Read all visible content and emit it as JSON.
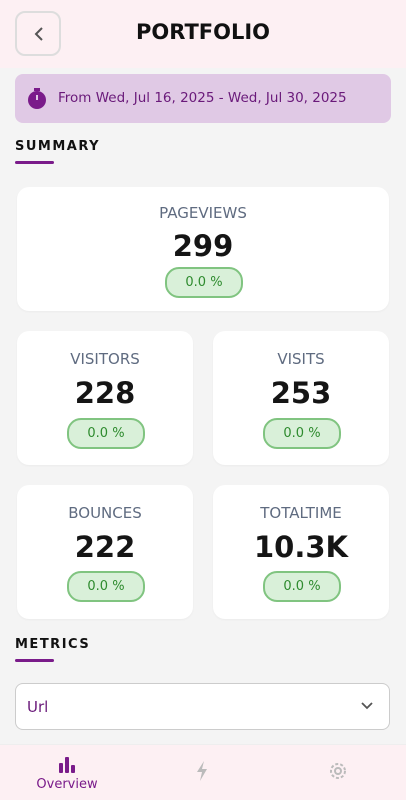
{
  "header": {
    "title": "PORTFOLIO"
  },
  "date_range": "From Wed, Jul 16, 2025 - Wed, Jul 30, 2025",
  "summary": {
    "title": "SUMMARY",
    "cards": [
      {
        "label": "PAGEVIEWS",
        "value": 299,
        "change": "0.0 %"
      },
      {
        "label": "VISITORS",
        "value": 228,
        "change": "0.0 %"
      },
      {
        "label": "VISITS",
        "value": 253,
        "change": "0.0 %"
      },
      {
        "label": "BOUNCES",
        "value": 222,
        "change": "0.0 %"
      },
      {
        "label": "TOTALTIME",
        "value": "10.3K",
        "change": "0.0 %"
      }
    ]
  },
  "metrics": {
    "title": "METRICS",
    "selected": "Url"
  },
  "nav": {
    "items": [
      "Overview"
    ]
  }
}
